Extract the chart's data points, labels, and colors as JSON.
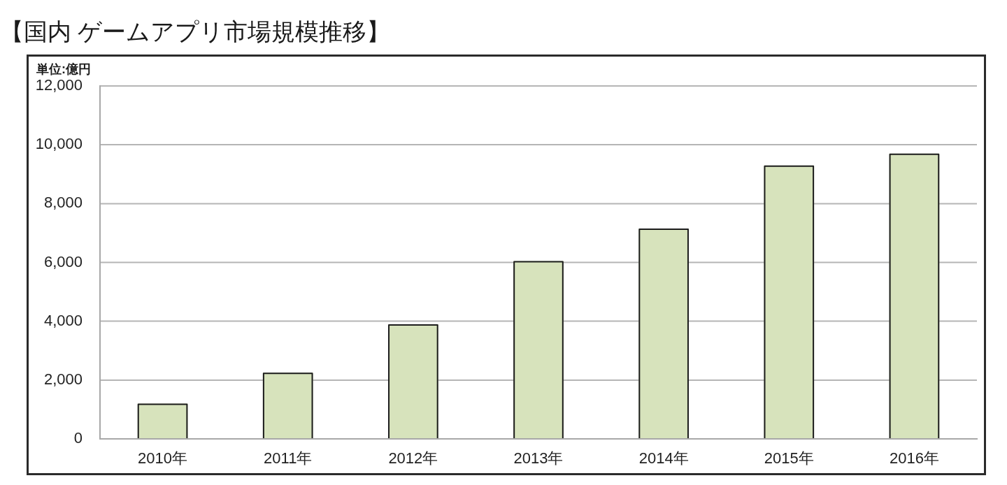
{
  "chart_data": {
    "type": "bar",
    "title": "【国内 ゲームアプリ市場規模推移】",
    "ylabel": "単位:億円",
    "categories": [
      "2010年",
      "2011年",
      "2012年",
      "2013年",
      "2014年",
      "2015年",
      "2016年"
    ],
    "values": [
      1200,
      2250,
      3900,
      6050,
      7150,
      9300,
      9700
    ],
    "color": "#d7e3bc",
    "ylim": [
      0,
      12000
    ],
    "yticks": [
      0,
      {
        "value": 2000,
        "label": "2,000"
      },
      {
        "value": 4000,
        "label": "4,000"
      },
      {
        "value": 6000,
        "label": "6,000"
      },
      {
        "value": 8000,
        "label": "8,000"
      },
      {
        "value": 10000,
        "label": "10,000"
      },
      {
        "value": 12000,
        "label": "12,000"
      }
    ],
    "grid": "y"
  }
}
